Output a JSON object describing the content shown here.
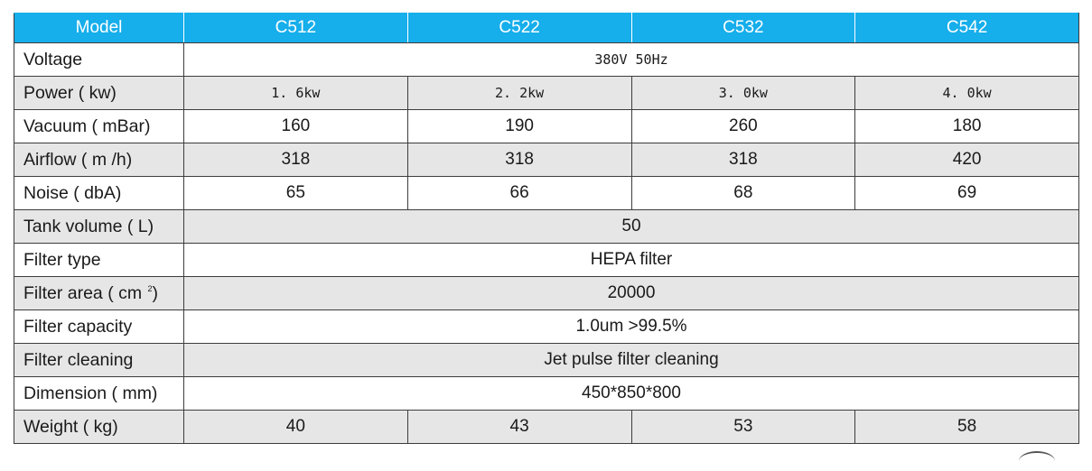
{
  "table": {
    "header": {
      "model": "Model",
      "models": [
        "C512",
        "C522",
        "C532",
        "C542"
      ]
    },
    "rows": {
      "voltage": {
        "label": "Voltage",
        "value": "380V  50Hz"
      },
      "power": {
        "label": "Power ( kw)",
        "values": [
          "1. 6kw",
          "2. 2kw",
          "3. 0kw",
          "4. 0kw"
        ]
      },
      "vacuum": {
        "label": "Vacuum ( mBar)",
        "values": [
          "160",
          "190",
          "260",
          "180"
        ]
      },
      "airflow": {
        "label": "Airflow ( m  /h)",
        "values": [
          "318",
          "318",
          "318",
          "420"
        ]
      },
      "noise": {
        "label": "Noise ( dbA)",
        "values": [
          "65",
          "66",
          "68",
          "69"
        ]
      },
      "tank_volume": {
        "label": "Tank volume ( L)",
        "value": "50"
      },
      "filter_type": {
        "label": "Filter type",
        "value": "HEPA filter"
      },
      "filter_area": {
        "label": "Filter area ( cm ",
        "label_sup": "2",
        "label_end": ")",
        "value": "20000"
      },
      "filter_capacity": {
        "label": "Filter capacity",
        "value": "1.0um  >99.5%"
      },
      "filter_cleaning": {
        "label": "Filter cleaning",
        "value": "Jet pulse filter cleaning"
      },
      "dimension": {
        "label": "Dimension ( mm)",
        "value": "450*850*800"
      },
      "weight": {
        "label": "Weight ( kg)",
        "values": [
          "40",
          "43",
          "53",
          "58"
        ]
      }
    }
  },
  "colors": {
    "header_bg": "#16aeeb",
    "header_text": "#ffffff",
    "stripe": "#e6e6e6",
    "border": "#3c3c3c"
  }
}
